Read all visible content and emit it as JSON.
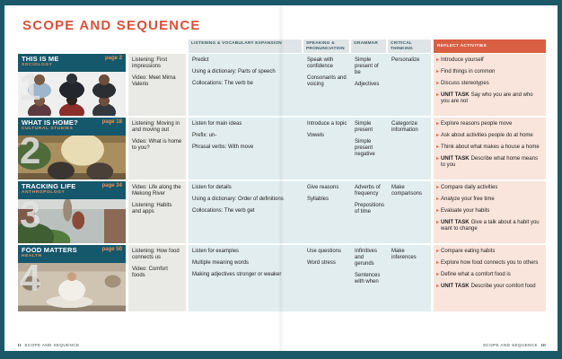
{
  "page": {
    "title": "SCOPE AND SEQUENCE",
    "footer": {
      "left_page": "II",
      "left_label": "SCOPE AND SEQUENCE",
      "right_label": "SCOPE AND SEQUENCE",
      "right_page": "III"
    }
  },
  "labels": {
    "unit_task": "UNIT TASK"
  },
  "colors": {
    "frame_teal": "#1b5968",
    "unit_bar_teal": "#15576b",
    "title_orange": "#d9503a",
    "reflect_header_orange": "#d95f43",
    "listening_cell_bg": "#e9eae6",
    "center_cell_bg": "#e1edef",
    "reflect_cell_bg": "#f9e5dc",
    "header_bg": "#dfe5e6"
  },
  "columns": {
    "listening_vocab": "LISTENING & VOCABULARY EXPANSION",
    "speaking": "SPEAKING & PRONUNCIATION",
    "grammar": "GRAMMAR",
    "critical": "CRITICAL THINKING",
    "reflect": "REFLECT ACTIVITIES"
  },
  "units": [
    {
      "number": "1",
      "title": "THIS IS ME",
      "discipline": "SOCIOLOGY",
      "page_label": "page 2",
      "photo_alt": "grid of six portrait headshots",
      "listening": [
        "Listening: First impressions",
        "Video: Meet Mirna Valerio"
      ],
      "vocabulary": [
        "Predict",
        "Using a dictionary: Parts of speech",
        "Collocations: The verb be"
      ],
      "speaking": [
        "Speak with confidence",
        "Consonants and voicing"
      ],
      "grammar": [
        "Simple present of be",
        "Adjectives"
      ],
      "critical": [
        "Personalize"
      ],
      "reflect": [
        "Introduce yourself",
        "Find things in common",
        "Discuss stereotypes"
      ],
      "unit_task": "Say who you are and who you are not"
    },
    {
      "number": "2",
      "title": "WHAT IS HOME?",
      "discipline": "CULTURAL STUDIES",
      "page_label": "page 18",
      "photo_alt": "people sitting at a table in a warmly lit home interior",
      "listening": [
        "Listening: Moving in and moving out",
        "Video: What is home to you?"
      ],
      "vocabulary": [
        "Listen for main ideas",
        "Prefix: un-",
        "Phrasal verbs: With move"
      ],
      "speaking": [
        "Introduce a topic",
        "Vowels"
      ],
      "grammar": [
        "Simple present",
        "Simple present negative"
      ],
      "critical": [
        "Categorize information"
      ],
      "reflect": [
        "Explore reasons people move",
        "Ask about activities people do at home",
        "Think about what makes a house a home"
      ],
      "unit_task": "Describe what home means to you"
    },
    {
      "number": "3",
      "title": "TRACKING LIFE",
      "discipline": "ANTHROPOLOGY",
      "page_label": "page 34",
      "photo_alt": "street scene with plants and a cyclist",
      "listening": [
        "Video: Life along the Mekong River",
        "Listening: Habits and apps"
      ],
      "vocabulary": [
        "Listen for details",
        "Using a dictionary: Order of definitions",
        "Collocations: The verb get"
      ],
      "speaking": [
        "Give reasons",
        "Syllables"
      ],
      "grammar": [
        "Adverbs of frequency",
        "Prepositions of time"
      ],
      "critical": [
        "Make comparisons"
      ],
      "reflect": [
        "Compare daily activities",
        "Analyze your free time",
        "Evaluate your habits"
      ],
      "unit_task": "Give a talk about a habit you want to change"
    },
    {
      "number": "4",
      "title": "FOOD MATTERS",
      "discipline": "HEALTH",
      "page_label": "page 50",
      "photo_alt": "chef holding a tray of food",
      "listening": [
        "Listening: How food connects us",
        "Video: Comfort foods"
      ],
      "vocabulary": [
        "Listen for examples",
        "Multiple meaning words",
        "Making adjectives stronger or weaker"
      ],
      "speaking": [
        "Use questions",
        "Word stress"
      ],
      "grammar": [
        "Infinitives and gerunds",
        "Sentences with when"
      ],
      "critical": [
        "Make inferences"
      ],
      "reflect": [
        "Compare eating habits",
        "Explore how food connects you to others",
        "Define what a comfort food is"
      ],
      "unit_task": "Describe your comfort food"
    }
  ]
}
